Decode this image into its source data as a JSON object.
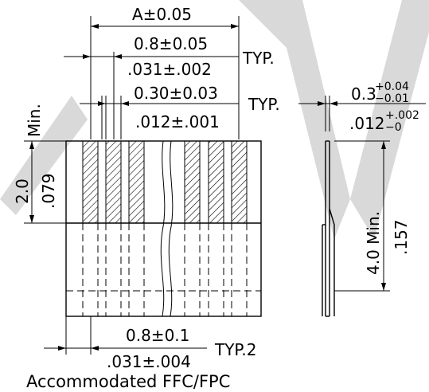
{
  "colors": {
    "line": "#000000",
    "watermark": "#d9d9d9",
    "background": "#ffffff"
  },
  "dims": {
    "a_width": "A±0.05",
    "pitch_mm": "0.8±0.05",
    "pitch_in": ".031±.002",
    "typ": "TYP.",
    "contact_mm": "0.30±0.03",
    "contact_in": ".012±.001",
    "typ2": "TYP.",
    "thick_base": "0.3",
    "thick_tol_upper": "+0.04",
    "thick_tol_lower": "−0.01",
    "thick_in_base": ".012",
    "thick_in_upper": "+.002",
    "thick_in_lower": "−0",
    "min_exposed_mm": "2.0",
    "min_exposed_in": ".079",
    "min_label": "Min.",
    "stiff_len": "4.0 Min.",
    "stiff_in": ".157",
    "bottom_pitch_mm": "0.8±0.1",
    "bottom_pitch_in": ".031±.004",
    "typ_2": "TYP.2"
  },
  "caption": "Accommodated FFC/FPC"
}
